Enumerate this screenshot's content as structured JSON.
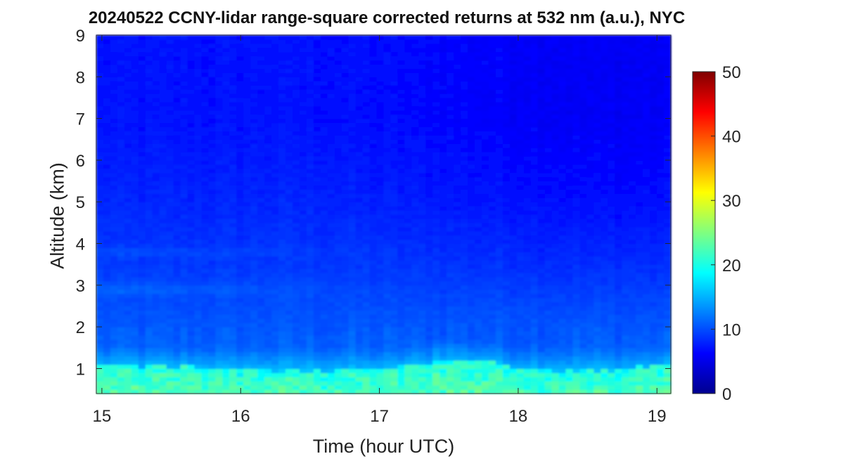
{
  "chart_data": {
    "type": "heatmap",
    "title": "20240522 CCNY-lidar range-square corrected returns at 532 nm (a.u.), NYC",
    "xlabel": "Time (hour UTC)",
    "ylabel": "Altitude (km)",
    "xlim": [
      14.96,
      19.1
    ],
    "ylim": [
      0.4,
      9
    ],
    "x_ticks": [
      15,
      16,
      17,
      18,
      19
    ],
    "y_ticks": [
      1,
      2,
      3,
      4,
      5,
      6,
      7,
      8,
      9
    ],
    "colorbar": {
      "colormap": "jet",
      "range": [
        0,
        50
      ],
      "ticks": [
        0,
        10,
        20,
        30,
        40,
        50
      ]
    },
    "boundary_layer_top_km": {
      "time": [
        15.0,
        15.5,
        16.0,
        16.5,
        17.0,
        17.25,
        17.5,
        17.75,
        18.0,
        18.25,
        18.5,
        18.75,
        19.0,
        19.1
      ],
      "height": [
        1.1,
        1.05,
        1.0,
        0.95,
        1.0,
        1.1,
        1.25,
        1.2,
        1.05,
        0.95,
        0.95,
        1.0,
        1.05,
        1.1
      ]
    },
    "value_summary": [
      {
        "altitude_km": 0.6,
        "value": 20
      },
      {
        "altitude_km": 1.0,
        "value": 15
      },
      {
        "altitude_km": 1.5,
        "value": 11
      },
      {
        "altitude_km": 2.5,
        "value": 10
      },
      {
        "altitude_km": 3.5,
        "value": 9
      },
      {
        "altitude_km": 5.0,
        "value": 8
      },
      {
        "altitude_km": 7.0,
        "value": 7
      },
      {
        "altitude_km": 9.0,
        "value": 7
      }
    ]
  }
}
